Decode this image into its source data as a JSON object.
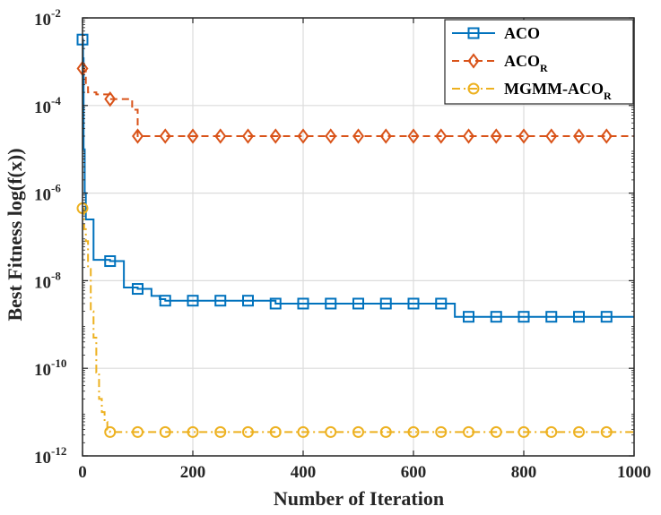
{
  "chart_data": {
    "type": "line",
    "xlabel": "Number of Iteration",
    "ylabel": "Best Fitness log(f(x))",
    "xscale": "linear",
    "yscale": "log",
    "xlim": [
      0,
      1000
    ],
    "ylim_exp": [
      -12,
      -2
    ],
    "grid": true,
    "legend_position": "top-right",
    "x_ticks": [
      0,
      200,
      400,
      600,
      800,
      1000
    ],
    "x_tick_labels": [
      "0",
      "200",
      "400",
      "600",
      "800",
      "1000"
    ],
    "y_tick_exps": [
      -12,
      -10,
      -8,
      -6,
      -4,
      -2
    ],
    "y_tick_base": "10",
    "y_tick_exp_labels": [
      "-12",
      "-10",
      "-8",
      "-6",
      "-4",
      "-2"
    ],
    "series": [
      {
        "name": "ACO",
        "name_sub": "",
        "color": "#0072BD",
        "dash": "solid",
        "marker": "square",
        "steps": [
          [
            0,
            0.0032
          ],
          [
            1,
            0.0012
          ],
          [
            2,
            1e-05
          ],
          [
            4,
            1e-06
          ],
          [
            6,
            2.5e-07
          ],
          [
            20,
            3e-08
          ],
          [
            50,
            2.8e-08
          ],
          [
            75,
            7e-09
          ],
          [
            100,
            6.5e-09
          ],
          [
            125,
            4.5e-09
          ],
          [
            140,
            3.8e-09
          ],
          [
            150,
            3.5e-09
          ],
          [
            350,
            3e-09
          ],
          [
            675,
            1.5e-09
          ],
          [
            1000,
            1.5e-09
          ]
        ],
        "marker_x": [
          0,
          50,
          100,
          150,
          200,
          250,
          300,
          350,
          400,
          450,
          500,
          550,
          600,
          650,
          700,
          750,
          800,
          850,
          900,
          950
        ]
      },
      {
        "name": "ACO",
        "name_sub": "R",
        "color": "#D95319",
        "dash": "dashed",
        "marker": "diamond",
        "steps": [
          [
            0,
            0.0007
          ],
          [
            3,
            0.0006
          ],
          [
            6,
            0.0003
          ],
          [
            10,
            0.0002
          ],
          [
            25,
            0.00018
          ],
          [
            50,
            0.00014
          ],
          [
            90,
            8e-05
          ],
          [
            100,
            2e-05
          ],
          [
            1000,
            2e-05
          ]
        ],
        "marker_x": [
          0,
          50,
          100,
          150,
          200,
          250,
          300,
          350,
          400,
          450,
          500,
          550,
          600,
          650,
          700,
          750,
          800,
          850,
          900,
          950
        ]
      },
      {
        "name": "MGMM-ACO",
        "name_sub": "R",
        "color": "#EDB120",
        "dash": "dashdot",
        "marker": "circle",
        "steps": [
          [
            0,
            4.5e-07
          ],
          [
            3,
            1.5e-07
          ],
          [
            6,
            8e-08
          ],
          [
            10,
            2e-08
          ],
          [
            15,
            2e-09
          ],
          [
            20,
            5e-10
          ],
          [
            25,
            8e-11
          ],
          [
            30,
            2e-11
          ],
          [
            35,
            1e-11
          ],
          [
            40,
            6e-12
          ],
          [
            45,
            4e-12
          ],
          [
            50,
            3.5e-12
          ],
          [
            1000,
            3.5e-12
          ]
        ],
        "marker_x": [
          0,
          50,
          100,
          150,
          200,
          250,
          300,
          350,
          400,
          450,
          500,
          550,
          600,
          650,
          700,
          750,
          800,
          850,
          900,
          950
        ]
      }
    ]
  }
}
